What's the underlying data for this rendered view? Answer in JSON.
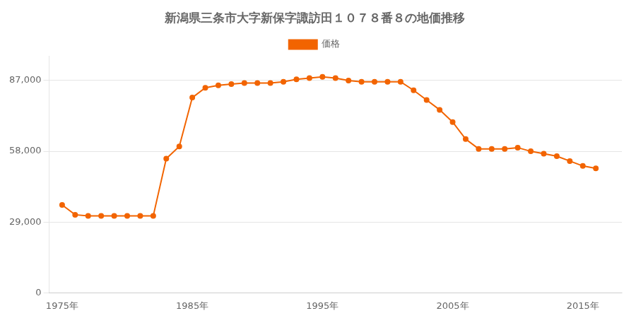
{
  "chart_data": {
    "type": "line",
    "title": "新潟県三条市大字新保字諏訪田１０７８番８の地価推移",
    "x": [
      1975,
      1976,
      1977,
      1978,
      1979,
      1980,
      1981,
      1982,
      1983,
      1984,
      1985,
      1986,
      1987,
      1988,
      1989,
      1990,
      1991,
      1992,
      1993,
      1994,
      1995,
      1996,
      1997,
      1998,
      1999,
      2000,
      2001,
      2002,
      2003,
      2004,
      2005,
      2006,
      2007,
      2008,
      2009,
      2010,
      2011,
      2012,
      2013,
      2014,
      2015,
      2016
    ],
    "series": [
      {
        "name": "価格",
        "color": "#F26400",
        "marker": "circle",
        "values": [
          36000,
          32000,
          31500,
          31500,
          31500,
          31500,
          31500,
          31500,
          55000,
          60000,
          80000,
          84000,
          85000,
          85500,
          86000,
          86000,
          86000,
          86500,
          87500,
          88000,
          88500,
          88000,
          87000,
          86500,
          86500,
          86500,
          86500,
          83000,
          79000,
          75000,
          70000,
          63000,
          59000,
          59000,
          59000,
          59500,
          58000,
          57000,
          56000,
          54000,
          52000,
          51000
        ]
      }
    ],
    "xlim": [
      1974,
      2018
    ],
    "xticks": [
      {
        "value": 1975,
        "label": "1975年"
      },
      {
        "value": 1985,
        "label": "1985年"
      },
      {
        "value": 1995,
        "label": "1995年"
      },
      {
        "value": 2005,
        "label": "2005年"
      },
      {
        "value": 2015,
        "label": "2015年"
      }
    ],
    "ylim": [
      0,
      97000
    ],
    "yticks": [
      0,
      {
        "value": 29000,
        "label": "29,000"
      },
      {
        "value": 58000,
        "label": "58,000"
      },
      {
        "value": 87000,
        "label": "87,000"
      }
    ],
    "grid": "y",
    "legend": "top"
  }
}
